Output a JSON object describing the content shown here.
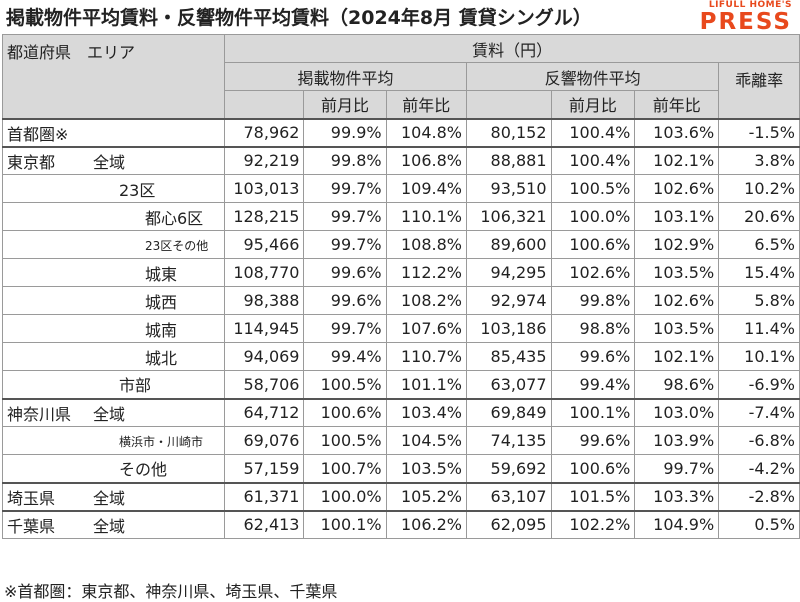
{
  "title": "掲載物件平均賃料・反響物件平均賃料（2024年8月 賃貸シングル）",
  "logo": {
    "top": "LIFULL HOME'S",
    "bottom": "PRESS",
    "color": "#e8491d"
  },
  "header": {
    "area": "都道府県　エリア",
    "rent": "賃料（円）",
    "listed": "掲載物件平均",
    "response": "反響物件平均",
    "divergence": "乖離率",
    "mom": "前月比",
    "yoy": "前年比"
  },
  "rows": [
    {
      "pref": "首都圏※",
      "area": "",
      "l": "78,962",
      "lm": "99.9%",
      "ly": "104.8%",
      "r": "80,152",
      "rm": "100.4%",
      "ry": "103.6%",
      "d": "-1.5%"
    },
    {
      "pref": "東京都",
      "area": "全域",
      "l": "92,219",
      "lm": "99.8%",
      "ly": "106.8%",
      "r": "88,881",
      "rm": "100.4%",
      "ry": "102.1%",
      "d": "3.8%"
    },
    {
      "pref": "",
      "area": "23区",
      "l": "103,013",
      "lm": "99.7%",
      "ly": "109.4%",
      "r": "93,510",
      "rm": "100.5%",
      "ry": "102.6%",
      "d": "10.2%"
    },
    {
      "pref": "",
      "area": "都心6区",
      "l": "128,215",
      "lm": "99.7%",
      "ly": "110.1%",
      "r": "106,321",
      "rm": "100.0%",
      "ry": "103.1%",
      "d": "20.6%"
    },
    {
      "pref": "",
      "area": "23区その他",
      "l": "95,466",
      "lm": "99.7%",
      "ly": "108.8%",
      "r": "89,600",
      "rm": "100.6%",
      "ry": "102.9%",
      "d": "6.5%"
    },
    {
      "pref": "",
      "area": "城東",
      "l": "108,770",
      "lm": "99.6%",
      "ly": "112.2%",
      "r": "94,295",
      "rm": "102.6%",
      "ry": "103.5%",
      "d": "15.4%"
    },
    {
      "pref": "",
      "area": "城西",
      "l": "98,388",
      "lm": "99.6%",
      "ly": "108.2%",
      "r": "92,974",
      "rm": "99.8%",
      "ry": "102.6%",
      "d": "5.8%"
    },
    {
      "pref": "",
      "area": "城南",
      "l": "114,945",
      "lm": "99.7%",
      "ly": "107.6%",
      "r": "103,186",
      "rm": "98.8%",
      "ry": "103.5%",
      "d": "11.4%"
    },
    {
      "pref": "",
      "area": "城北",
      "l": "94,069",
      "lm": "99.4%",
      "ly": "110.7%",
      "r": "85,435",
      "rm": "99.6%",
      "ry": "102.1%",
      "d": "10.1%"
    },
    {
      "pref": "",
      "area": "市部",
      "l": "58,706",
      "lm": "100.5%",
      "ly": "101.1%",
      "r": "63,077",
      "rm": "99.4%",
      "ry": "98.6%",
      "d": "-6.9%"
    },
    {
      "pref": "神奈川県",
      "area": "全域",
      "l": "64,712",
      "lm": "100.6%",
      "ly": "103.4%",
      "r": "69,849",
      "rm": "100.1%",
      "ry": "103.0%",
      "d": "-7.4%"
    },
    {
      "pref": "",
      "area": "横浜市・川崎市",
      "l": "69,076",
      "lm": "100.5%",
      "ly": "104.5%",
      "r": "74,135",
      "rm": "99.6%",
      "ry": "103.9%",
      "d": "-6.8%"
    },
    {
      "pref": "",
      "area": "その他",
      "l": "57,159",
      "lm": "100.7%",
      "ly": "103.5%",
      "r": "59,692",
      "rm": "100.6%",
      "ry": "99.7%",
      "d": "-4.2%"
    },
    {
      "pref": "埼玉県",
      "area": "全域",
      "l": "61,371",
      "lm": "100.0%",
      "ly": "105.2%",
      "r": "63,107",
      "rm": "101.5%",
      "ry": "103.3%",
      "d": "-2.8%"
    },
    {
      "pref": "千葉県",
      "area": "全域",
      "l": "62,413",
      "lm": "100.1%",
      "ly": "106.2%",
      "r": "62,095",
      "rm": "102.2%",
      "ry": "104.9%",
      "d": "0.5%"
    }
  ],
  "footnote": "※首都圏：東京都、神奈川県、埼玉県、千葉県"
}
